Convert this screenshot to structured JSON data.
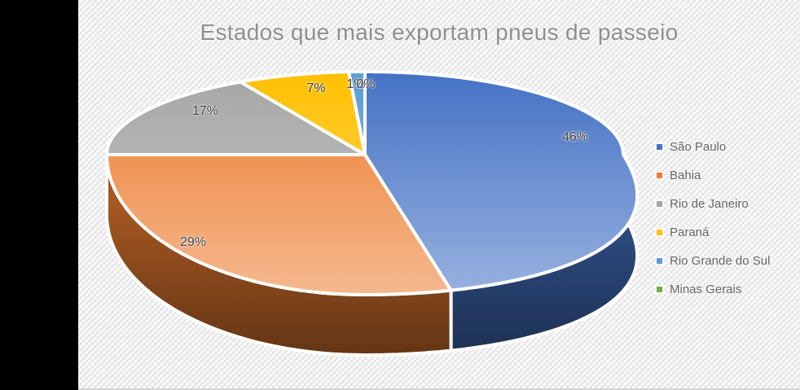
{
  "chart_data": {
    "type": "pie",
    "projection": "3d",
    "title": "Estados que mais exportam pneus de passeio",
    "start_angle_deg": 0,
    "direction": "clockwise",
    "legend_position": "right",
    "data_labels": "percent",
    "series": [
      {
        "name": "São Paulo",
        "value": 46,
        "label": "46%",
        "color": "#4472C4"
      },
      {
        "name": "Bahia",
        "value": 29,
        "label": "29%",
        "color": "#ED7D31"
      },
      {
        "name": "Rio de Janeiro",
        "value": 17,
        "label": "17%",
        "color": "#A5A5A5"
      },
      {
        "name": "Paraná",
        "value": 7,
        "label": "7%",
        "color": "#FFC000"
      },
      {
        "name": "Rio Grande do Sul",
        "value": 1,
        "label": "1%",
        "color": "#5B9BD5"
      },
      {
        "name": "Minas Gerais",
        "value": 0,
        "label": "0%",
        "color": "#70AD47"
      }
    ]
  }
}
